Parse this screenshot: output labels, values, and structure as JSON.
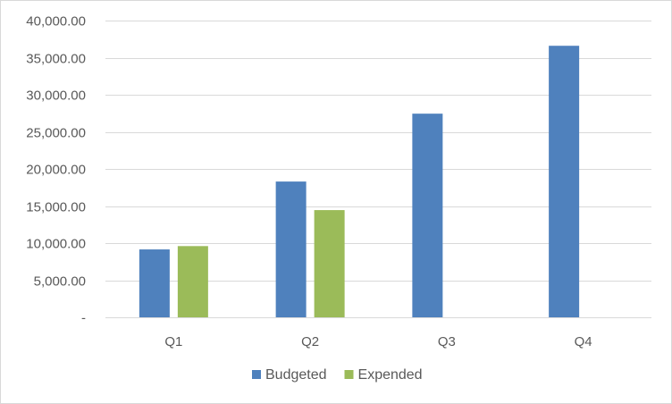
{
  "chart_data": {
    "type": "bar",
    "categories": [
      "Q1",
      "Q2",
      "Q3",
      "Q4"
    ],
    "series": [
      {
        "name": "Budgeted",
        "values": [
          9150,
          18300,
          27450,
          36600
        ],
        "color": "#4f81bd"
      },
      {
        "name": "Expended",
        "values": [
          9600,
          14450,
          null,
          null
        ],
        "color": "#9bbb59"
      }
    ],
    "title": "",
    "xlabel": "",
    "ylabel": "",
    "ylim": [
      0,
      40000
    ],
    "y_ticks": [
      {
        "value": 0,
        "label": "-"
      },
      {
        "value": 5000,
        "label": "5,000.00"
      },
      {
        "value": 10000,
        "label": "10,000.00"
      },
      {
        "value": 15000,
        "label": "15,000.00"
      },
      {
        "value": 20000,
        "label": "20,000.00"
      },
      {
        "value": 25000,
        "label": "25,000.00"
      },
      {
        "value": 30000,
        "label": "30,000.00"
      },
      {
        "value": 35000,
        "label": "35,000.00"
      },
      {
        "value": 40000,
        "label": "40,000.00"
      }
    ],
    "grid": true,
    "legend": "bottom",
    "gridline_color": "#d9d9d9",
    "text_color": "#595959"
  }
}
